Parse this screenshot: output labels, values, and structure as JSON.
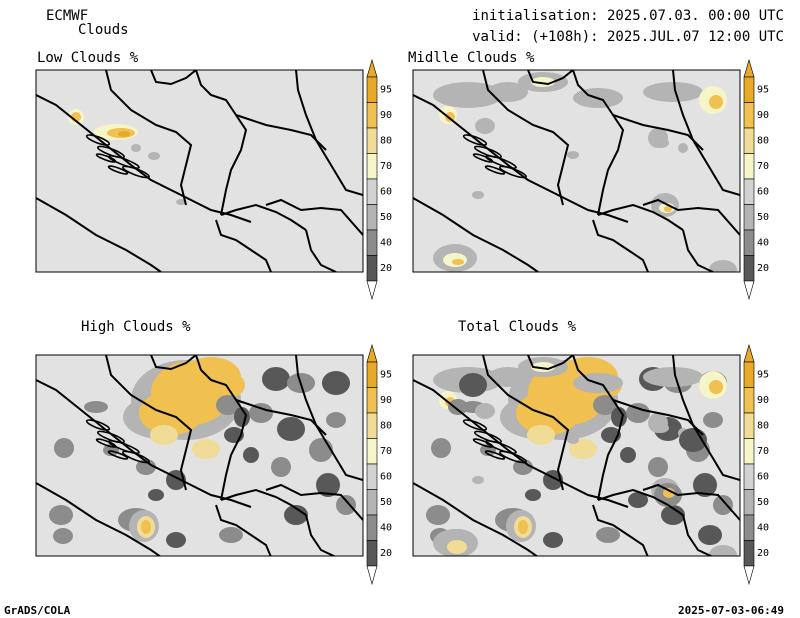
{
  "header": {
    "model": "ECMWF",
    "product": "Clouds",
    "initialisation": "initialisation: 2025.07.03. 00:00 UTC",
    "valid": "valid: (+108h): 2025.JUL.07 12:00 UTC"
  },
  "panels": [
    {
      "title": "Low Clouds %",
      "layer": "low"
    },
    {
      "title": "Midlle Clouds %",
      "layer": "mid"
    },
    {
      "title": "High Clouds %",
      "layer": "high"
    },
    {
      "title": "Total Clouds %",
      "layer": "total"
    }
  ],
  "colorbar": {
    "labels": [
      "20",
      "40",
      "50",
      "60",
      "70",
      "80",
      "90",
      "95"
    ],
    "colors": [
      "#585858",
      "#8c8c8c",
      "#b4b4b4",
      "#d2d2d2",
      "#f5f5c8",
      "#f0dc96",
      "#f0c050",
      "#e8a828"
    ]
  },
  "colors": {
    "background": "#e2e2e2",
    "border": "#000000"
  },
  "footer": {
    "left": "GrADS/COLA",
    "right": "2025-07-03-06:49"
  }
}
